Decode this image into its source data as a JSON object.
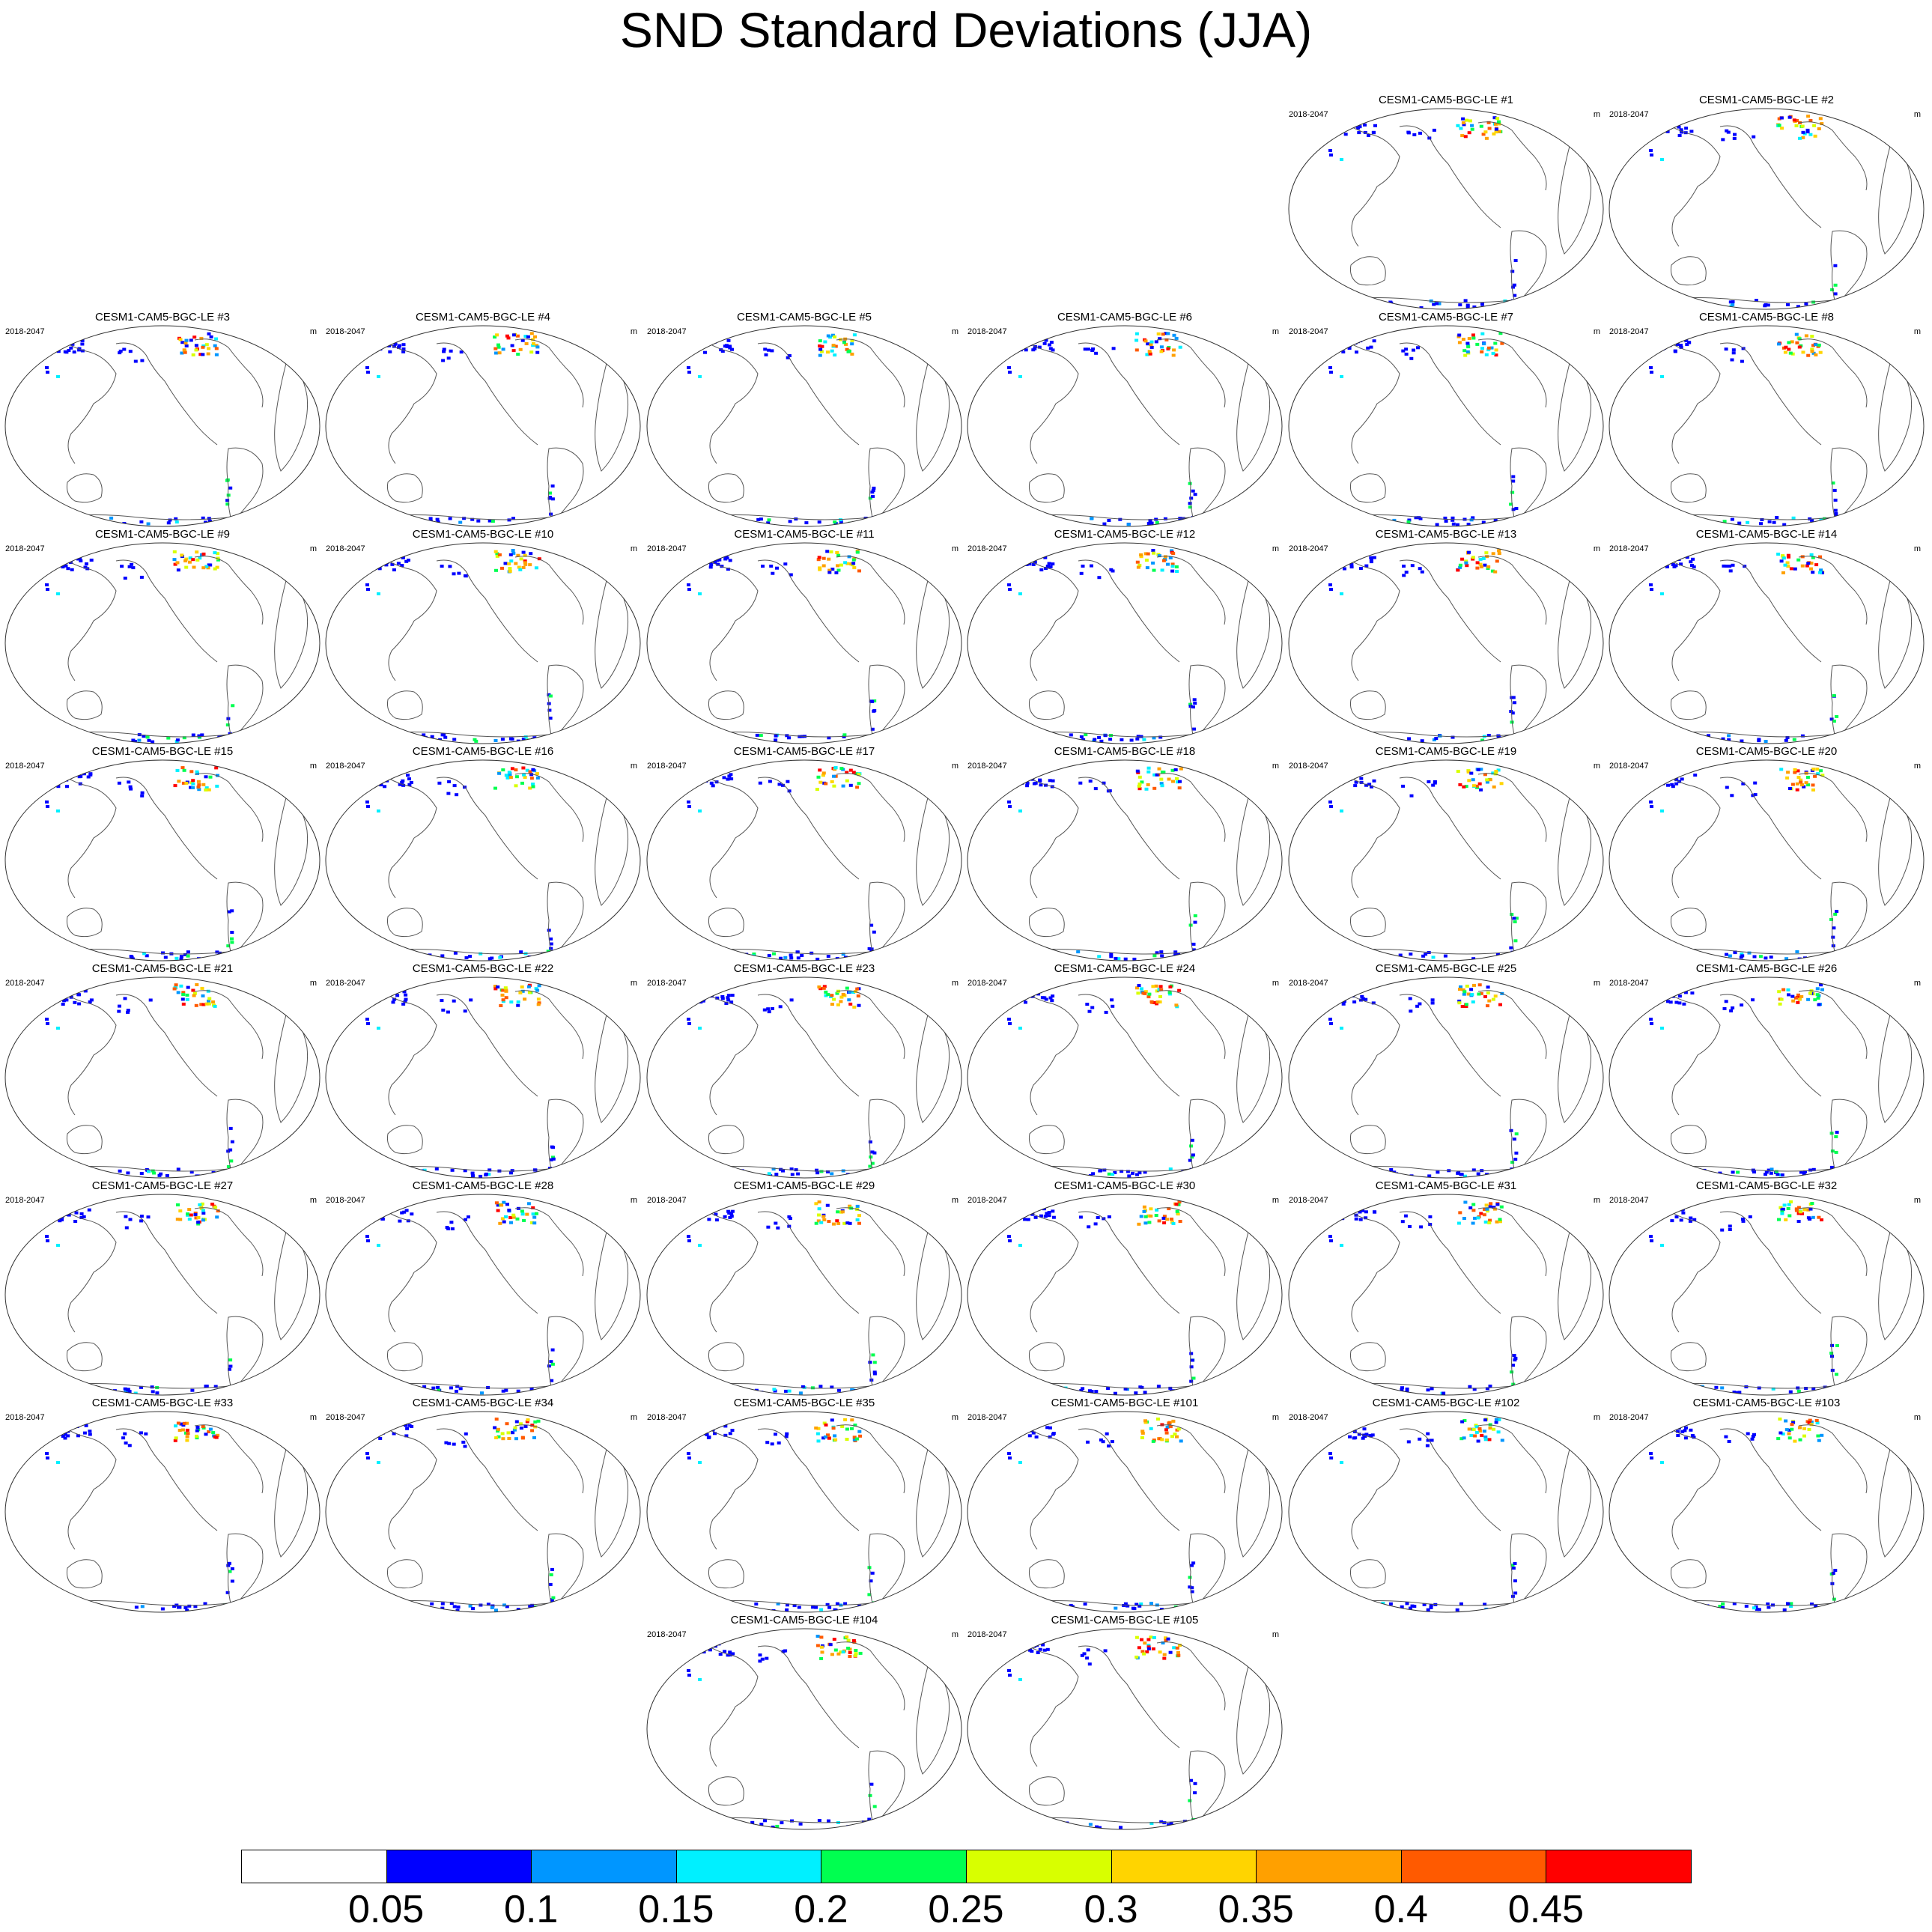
{
  "title": "SND Standard Deviations (JJA)",
  "panel_period": "2018-2047",
  "panel_unit": "m",
  "panels": [
    "CESM1-CAM5-BGC-LE #1",
    "CESM1-CAM5-BGC-LE #2",
    "CESM1-CAM5-BGC-LE #3",
    "CESM1-CAM5-BGC-LE #4",
    "CESM1-CAM5-BGC-LE #5",
    "CESM1-CAM5-BGC-LE #6",
    "CESM1-CAM5-BGC-LE #7",
    "CESM1-CAM5-BGC-LE #8",
    "CESM1-CAM5-BGC-LE #9",
    "CESM1-CAM5-BGC-LE #10",
    "CESM1-CAM5-BGC-LE #11",
    "CESM1-CAM5-BGC-LE #12",
    "CESM1-CAM5-BGC-LE #13",
    "CESM1-CAM5-BGC-LE #14",
    "CESM1-CAM5-BGC-LE #15",
    "CESM1-CAM5-BGC-LE #16",
    "CESM1-CAM5-BGC-LE #17",
    "CESM1-CAM5-BGC-LE #18",
    "CESM1-CAM5-BGC-LE #19",
    "CESM1-CAM5-BGC-LE #20",
    "CESM1-CAM5-BGC-LE #21",
    "CESM1-CAM5-BGC-LE #22",
    "CESM1-CAM5-BGC-LE #23",
    "CESM1-CAM5-BGC-LE #24",
    "CESM1-CAM5-BGC-LE #25",
    "CESM1-CAM5-BGC-LE #26",
    "CESM1-CAM5-BGC-LE #27",
    "CESM1-CAM5-BGC-LE #28",
    "CESM1-CAM5-BGC-LE #29",
    "CESM1-CAM5-BGC-LE #30",
    "CESM1-CAM5-BGC-LE #31",
    "CESM1-CAM5-BGC-LE #32",
    "CESM1-CAM5-BGC-LE #33",
    "CESM1-CAM5-BGC-LE #34",
    "CESM1-CAM5-BGC-LE #35",
    "CESM1-CAM5-BGC-LE #101",
    "CESM1-CAM5-BGC-LE #102",
    "CESM1-CAM5-BGC-LE #103",
    "CESM1-CAM5-BGC-LE #104",
    "CESM1-CAM5-BGC-LE #105"
  ],
  "colorbar": {
    "labels": [
      "0.05",
      "0.1",
      "0.15",
      "0.2",
      "0.25",
      "0.3",
      "0.35",
      "0.4",
      "0.45"
    ],
    "colors": [
      "#ffffff",
      "#0000ff",
      "#0096ff",
      "#00f0ff",
      "#00ff50",
      "#d8ff00",
      "#ffd400",
      "#ffa000",
      "#ff5a00",
      "#ff0000"
    ]
  },
  "colors": {
    "coastline": "#555555",
    "map_outline": "#333333"
  }
}
